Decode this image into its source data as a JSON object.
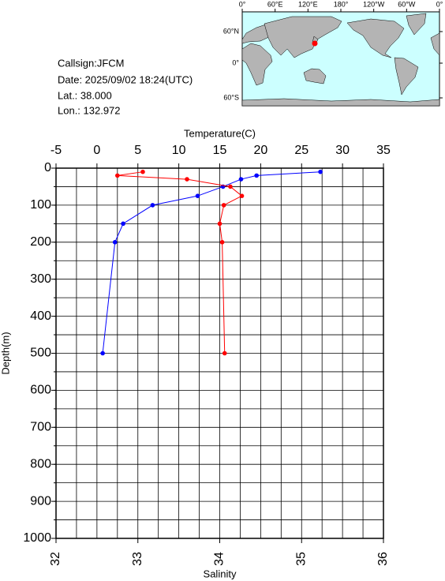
{
  "info": {
    "lines": [
      "Callsign:JFCM",
      "Date:  2025/09/02 18:24(UTC)",
      "Lat.:  38.000",
      "Lon.:  132.972"
    ]
  },
  "map": {
    "lon_labels": [
      "0°",
      "60°E",
      "120°E",
      "180°",
      "120°W",
      "60°W",
      "0°"
    ],
    "lat_labels": [
      "60°N",
      "0°",
      "60°S"
    ]
  },
  "chart_data": {
    "type": "line",
    "x_top": {
      "label": "Temperature(C)",
      "lim": [
        -5,
        35
      ],
      "ticks": [
        -5,
        0,
        5,
        10,
        15,
        20,
        25,
        30,
        35
      ],
      "grid": [
        -5,
        -2.5,
        0,
        2.5,
        5,
        7.5,
        10,
        12.5,
        15,
        17.5,
        20,
        22.5,
        25,
        27.5,
        30,
        32.5,
        35
      ]
    },
    "x_bottom": {
      "label": "Salinity",
      "lim": [
        32,
        36
      ],
      "ticks": [
        32,
        33,
        34,
        35,
        36
      ]
    },
    "y": {
      "label": "Depth(m)",
      "lim": [
        0,
        1000
      ],
      "inverted": true,
      "ticks": [
        0,
        100,
        200,
        300,
        400,
        500,
        600,
        700,
        800,
        900,
        1000
      ],
      "grid": [
        0,
        50,
        100,
        150,
        200,
        250,
        300,
        350,
        400,
        450,
        500,
        550,
        600,
        650,
        700,
        750,
        800,
        850,
        900,
        950,
        1000
      ]
    },
    "grid": true,
    "series": [
      {
        "axis": "x_top",
        "color": "#0000ff",
        "depth": [
          10,
          20,
          30,
          50,
          75,
          100,
          150,
          200,
          500
        ],
        "values": [
          27.3,
          19.5,
          17.6,
          15.4,
          12.3,
          6.8,
          3.2,
          2.2,
          0.7
        ]
      },
      {
        "axis": "x_bottom",
        "color": "#ff0000",
        "depth": [
          10,
          20,
          30,
          50,
          75,
          100,
          150,
          200,
          500
        ],
        "values": [
          33.06,
          32.75,
          33.6,
          34.13,
          34.27,
          34.05,
          34.0,
          34.03,
          34.06
        ]
      }
    ]
  }
}
